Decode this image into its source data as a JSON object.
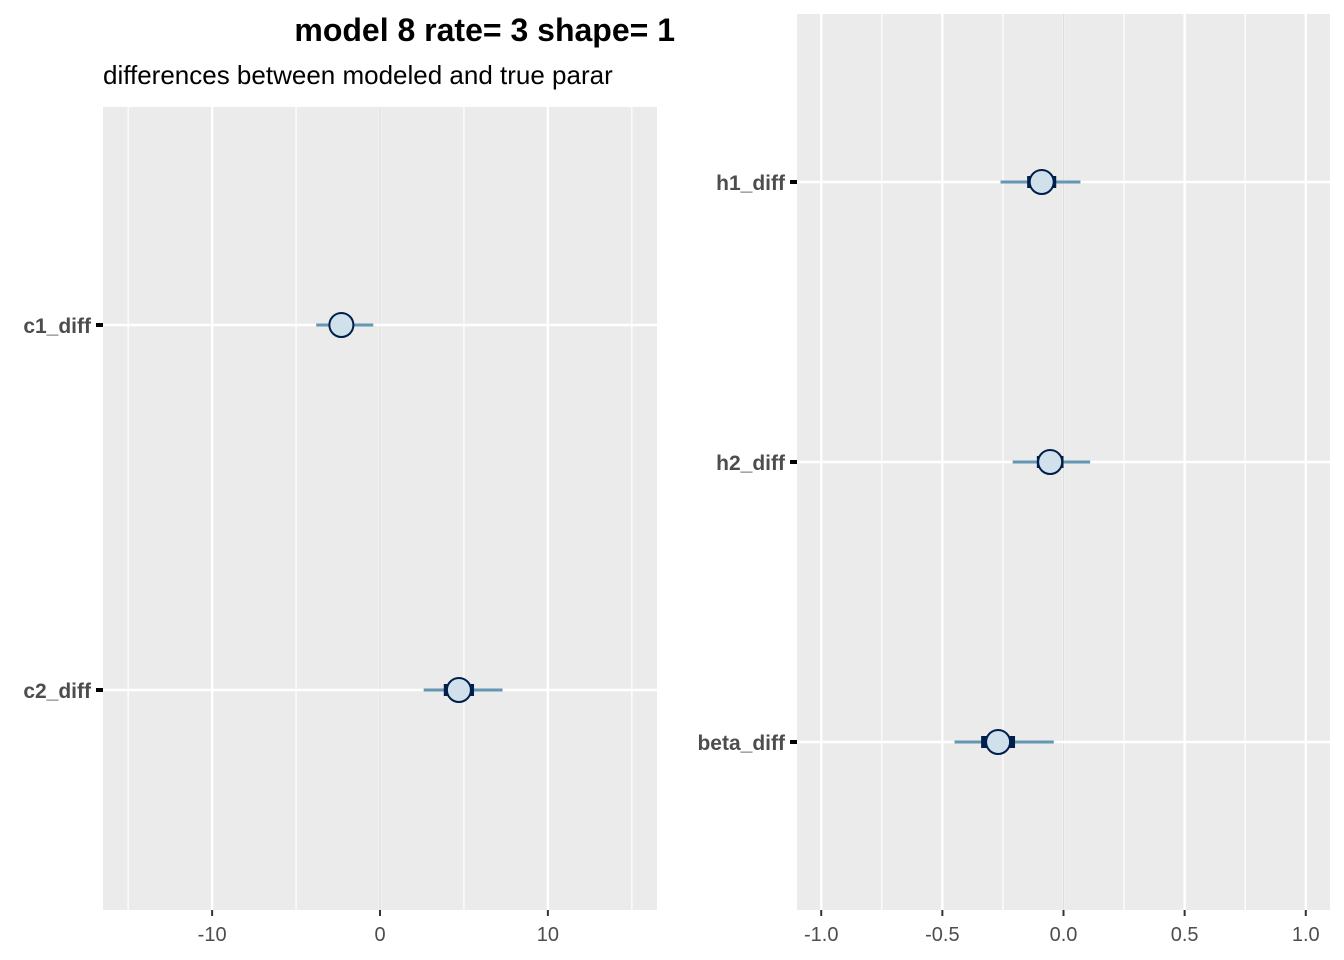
{
  "title": "model 8 rate= 3 shape= 1",
  "subtitle": "differences between modeled and true parar",
  "colors": {
    "panel_bg": "#ebebeb",
    "grid": "#ffffff",
    "interval_outer": "#6497b1",
    "interval_inner": "#011f4b",
    "point_fill": "#d1e1ec",
    "point_stroke": "#011f4b"
  },
  "chart_data": [
    {
      "type": "interval",
      "xlim": [
        -16.5,
        16.5
      ],
      "xticks": [
        -10,
        0,
        10
      ],
      "xtick_labels": [
        "-10",
        "0",
        "10"
      ],
      "minor_xticks": [
        -15,
        -5,
        5,
        15
      ],
      "grid": true,
      "params": [
        {
          "label": "c1_diff",
          "mean": -2.3,
          "inner": [
            -2.6,
            -2.0
          ],
          "outer": [
            -3.8,
            -0.4
          ]
        },
        {
          "label": "c2_diff",
          "mean": 4.7,
          "inner": [
            3.8,
            5.6
          ],
          "outer": [
            2.6,
            7.3
          ]
        }
      ]
    },
    {
      "type": "interval",
      "xlim": [
        -1.1,
        1.1
      ],
      "xticks": [
        -1.0,
        -0.5,
        0.0,
        0.5,
        1.0
      ],
      "xtick_labels": [
        "-1.0",
        "-0.5",
        "0.0",
        "0.5",
        "1.0"
      ],
      "minor_xticks": [
        -0.75,
        -0.25,
        0.25,
        0.75
      ],
      "grid": true,
      "params": [
        {
          "label": "h1_diff",
          "mean": -0.09,
          "inner": [
            -0.15,
            -0.03
          ],
          "outer": [
            -0.26,
            0.07
          ]
        },
        {
          "label": "h2_diff",
          "mean": -0.055,
          "inner": [
            -0.11,
            0.0
          ],
          "outer": [
            -0.21,
            0.11
          ]
        },
        {
          "label": "beta_diff",
          "mean": -0.27,
          "inner": [
            -0.34,
            -0.2
          ],
          "outer": [
            -0.45,
            -0.04
          ]
        }
      ]
    }
  ]
}
